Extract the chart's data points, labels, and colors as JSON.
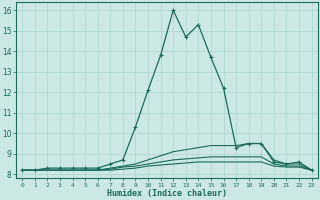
{
  "xlabel": "Humidex (Indice chaleur)",
  "ylabel": "",
  "bg_color": "#cce8e4",
  "grid_color": "#aad4cc",
  "line_color": "#1a6b5a",
  "xlim": [
    -0.5,
    23.5
  ],
  "ylim": [
    7.8,
    16.4
  ],
  "yticks": [
    8,
    9,
    10,
    11,
    12,
    13,
    14,
    15,
    16
  ],
  "xticks": [
    0,
    1,
    2,
    3,
    4,
    5,
    6,
    7,
    8,
    9,
    10,
    11,
    12,
    13,
    14,
    15,
    16,
    17,
    18,
    19,
    20,
    21,
    22,
    23
  ],
  "lines": [
    {
      "x": [
        0,
        1,
        2,
        3,
        4,
        5,
        6,
        7,
        8,
        9,
        10,
        11,
        12,
        13,
        14,
        15,
        16,
        17,
        18,
        19,
        20,
        21,
        22,
        23
      ],
      "y": [
        8.2,
        8.2,
        8.3,
        8.3,
        8.3,
        8.3,
        8.3,
        8.5,
        8.7,
        10.3,
        12.1,
        13.8,
        16.0,
        14.7,
        15.3,
        13.7,
        12.2,
        9.3,
        9.5,
        9.5,
        8.6,
        8.5,
        8.6,
        8.2
      ],
      "marker": "+"
    },
    {
      "x": [
        0,
        1,
        2,
        3,
        4,
        5,
        6,
        7,
        8,
        9,
        10,
        11,
        12,
        13,
        14,
        15,
        16,
        17,
        18,
        19,
        20,
        21,
        22,
        23
      ],
      "y": [
        8.2,
        8.2,
        8.2,
        8.2,
        8.2,
        8.2,
        8.2,
        8.3,
        8.4,
        8.5,
        8.7,
        8.9,
        9.1,
        9.2,
        9.3,
        9.4,
        9.4,
        9.4,
        9.5,
        9.5,
        8.7,
        8.5,
        8.5,
        8.2
      ],
      "marker": null
    },
    {
      "x": [
        0,
        1,
        2,
        3,
        4,
        5,
        6,
        7,
        8,
        9,
        10,
        11,
        12,
        13,
        14,
        15,
        16,
        17,
        18,
        19,
        20,
        21,
        22,
        23
      ],
      "y": [
        8.2,
        8.2,
        8.2,
        8.2,
        8.2,
        8.2,
        8.2,
        8.25,
        8.35,
        8.4,
        8.5,
        8.6,
        8.7,
        8.75,
        8.8,
        8.85,
        8.85,
        8.85,
        8.85,
        8.85,
        8.5,
        8.4,
        8.4,
        8.2
      ],
      "marker": null
    },
    {
      "x": [
        0,
        1,
        2,
        3,
        4,
        5,
        6,
        7,
        8,
        9,
        10,
        11,
        12,
        13,
        14,
        15,
        16,
        17,
        18,
        19,
        20,
        21,
        22,
        23
      ],
      "y": [
        8.2,
        8.2,
        8.2,
        8.2,
        8.2,
        8.2,
        8.2,
        8.2,
        8.25,
        8.3,
        8.4,
        8.45,
        8.5,
        8.55,
        8.6,
        8.6,
        8.6,
        8.6,
        8.6,
        8.6,
        8.4,
        8.35,
        8.35,
        8.2
      ],
      "marker": null
    }
  ],
  "xtick_fontsize": 4.5,
  "ytick_fontsize": 5.5,
  "xlabel_fontsize": 6.0
}
